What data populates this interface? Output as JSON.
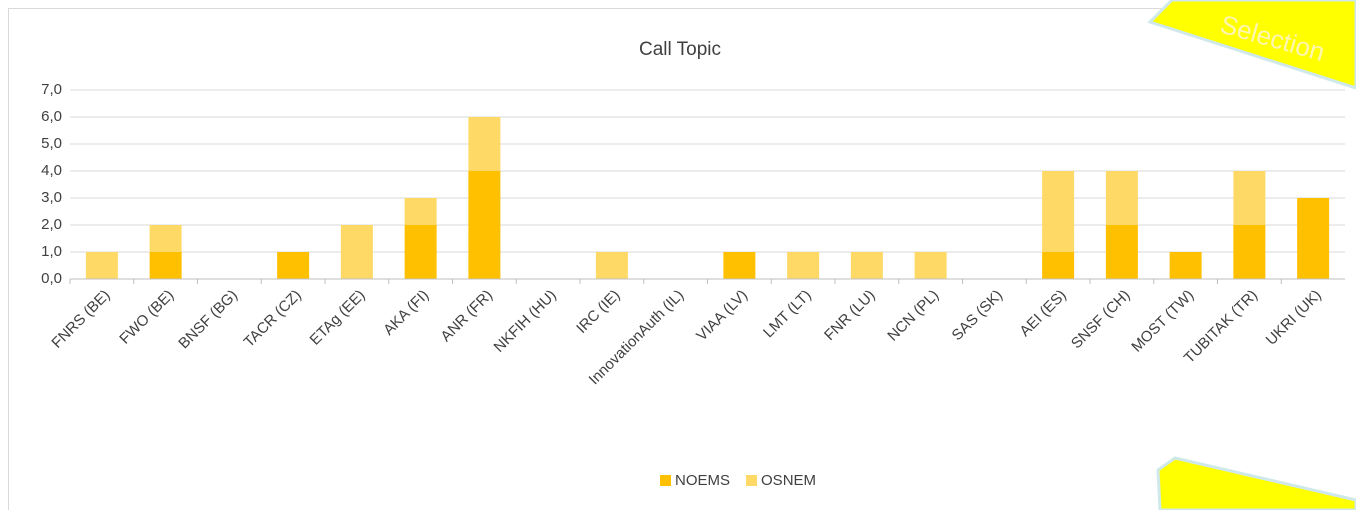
{
  "chart_data": {
    "type": "stacked_bar",
    "title": "Call Topic",
    "categories": [
      "FNRS (BE)",
      "FWO (BE)",
      "BNSF (BG)",
      "TACR (CZ)",
      "ETAg (EE)",
      "AKA (FI)",
      "ANR (FR)",
      "NKFIH (HU)",
      "IRC (IE)",
      "InnovationAuth (IL)",
      "VIAA (LV)",
      "LMT (LT)",
      "FNR (LU)",
      "NCN (PL)",
      "SAS (SK)",
      "AEI (ES)",
      "SNSF (CH)",
      "MOST (TW)",
      "TUBITAK (TR)",
      "UKRI (UK)"
    ],
    "series": [
      {
        "name": "NOEMS",
        "color": "#ffc000",
        "values": [
          0,
          1,
          0,
          1,
          0,
          2,
          4,
          0,
          0,
          0,
          1,
          0,
          0,
          0,
          0,
          1,
          2,
          1,
          2,
          3
        ]
      },
      {
        "name": "OSNEM",
        "color": "#ffd966",
        "values": [
          1,
          1,
          0,
          0,
          2,
          1,
          2,
          0,
          1,
          0,
          0,
          1,
          1,
          1,
          0,
          3,
          2,
          0,
          2,
          0
        ]
      }
    ],
    "ylim": [
      0,
      7
    ],
    "yticks": [
      {
        "value": 0,
        "label": "0,0"
      },
      {
        "value": 1,
        "label": "1,0"
      },
      {
        "value": 2,
        "label": "2,0"
      },
      {
        "value": 3,
        "label": "3,0"
      },
      {
        "value": 4,
        "label": "4,0"
      },
      {
        "value": 5,
        "label": "5,0"
      },
      {
        "value": 6,
        "label": "6,0"
      },
      {
        "value": 7,
        "label": "7,0"
      }
    ],
    "grid": true,
    "legend": "bottom"
  },
  "overlay_label": "Selection"
}
